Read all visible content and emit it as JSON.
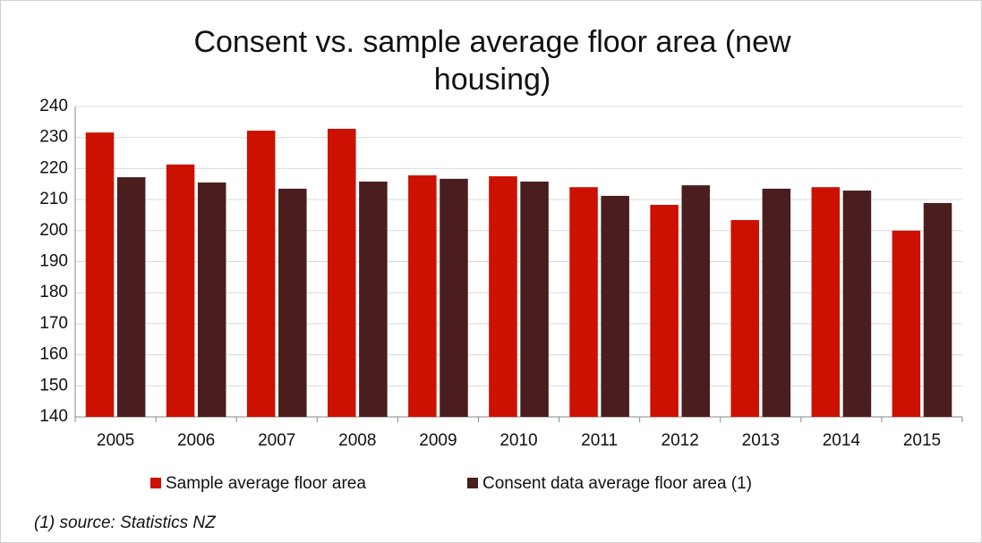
{
  "chart_data": {
    "type": "bar",
    "title": "Consent vs. sample average floor area (new housing)",
    "categories": [
      "2005",
      "2006",
      "2007",
      "2008",
      "2009",
      "2010",
      "2011",
      "2012",
      "2013",
      "2014",
      "2015"
    ],
    "series": [
      {
        "name": "Sample average floor area",
        "color": "#cc1100",
        "values": [
          231.6,
          221.3,
          232.2,
          232.8,
          217.8,
          217.5,
          214,
          208.3,
          203.4,
          214,
          200
        ]
      },
      {
        "name": "Consent data average floor area (1)",
        "color": "#4a1e1e",
        "values": [
          217.2,
          215.5,
          213.5,
          215.8,
          216.7,
          215.8,
          211.2,
          214.6,
          213.5,
          212.9,
          208.9
        ]
      }
    ],
    "ylim": [
      140,
      240
    ],
    "yticks": [
      140,
      150,
      160,
      170,
      180,
      190,
      200,
      210,
      220,
      230,
      240
    ],
    "grid": true,
    "legend": "bottom",
    "note": "(1) source: Statistics NZ"
  }
}
